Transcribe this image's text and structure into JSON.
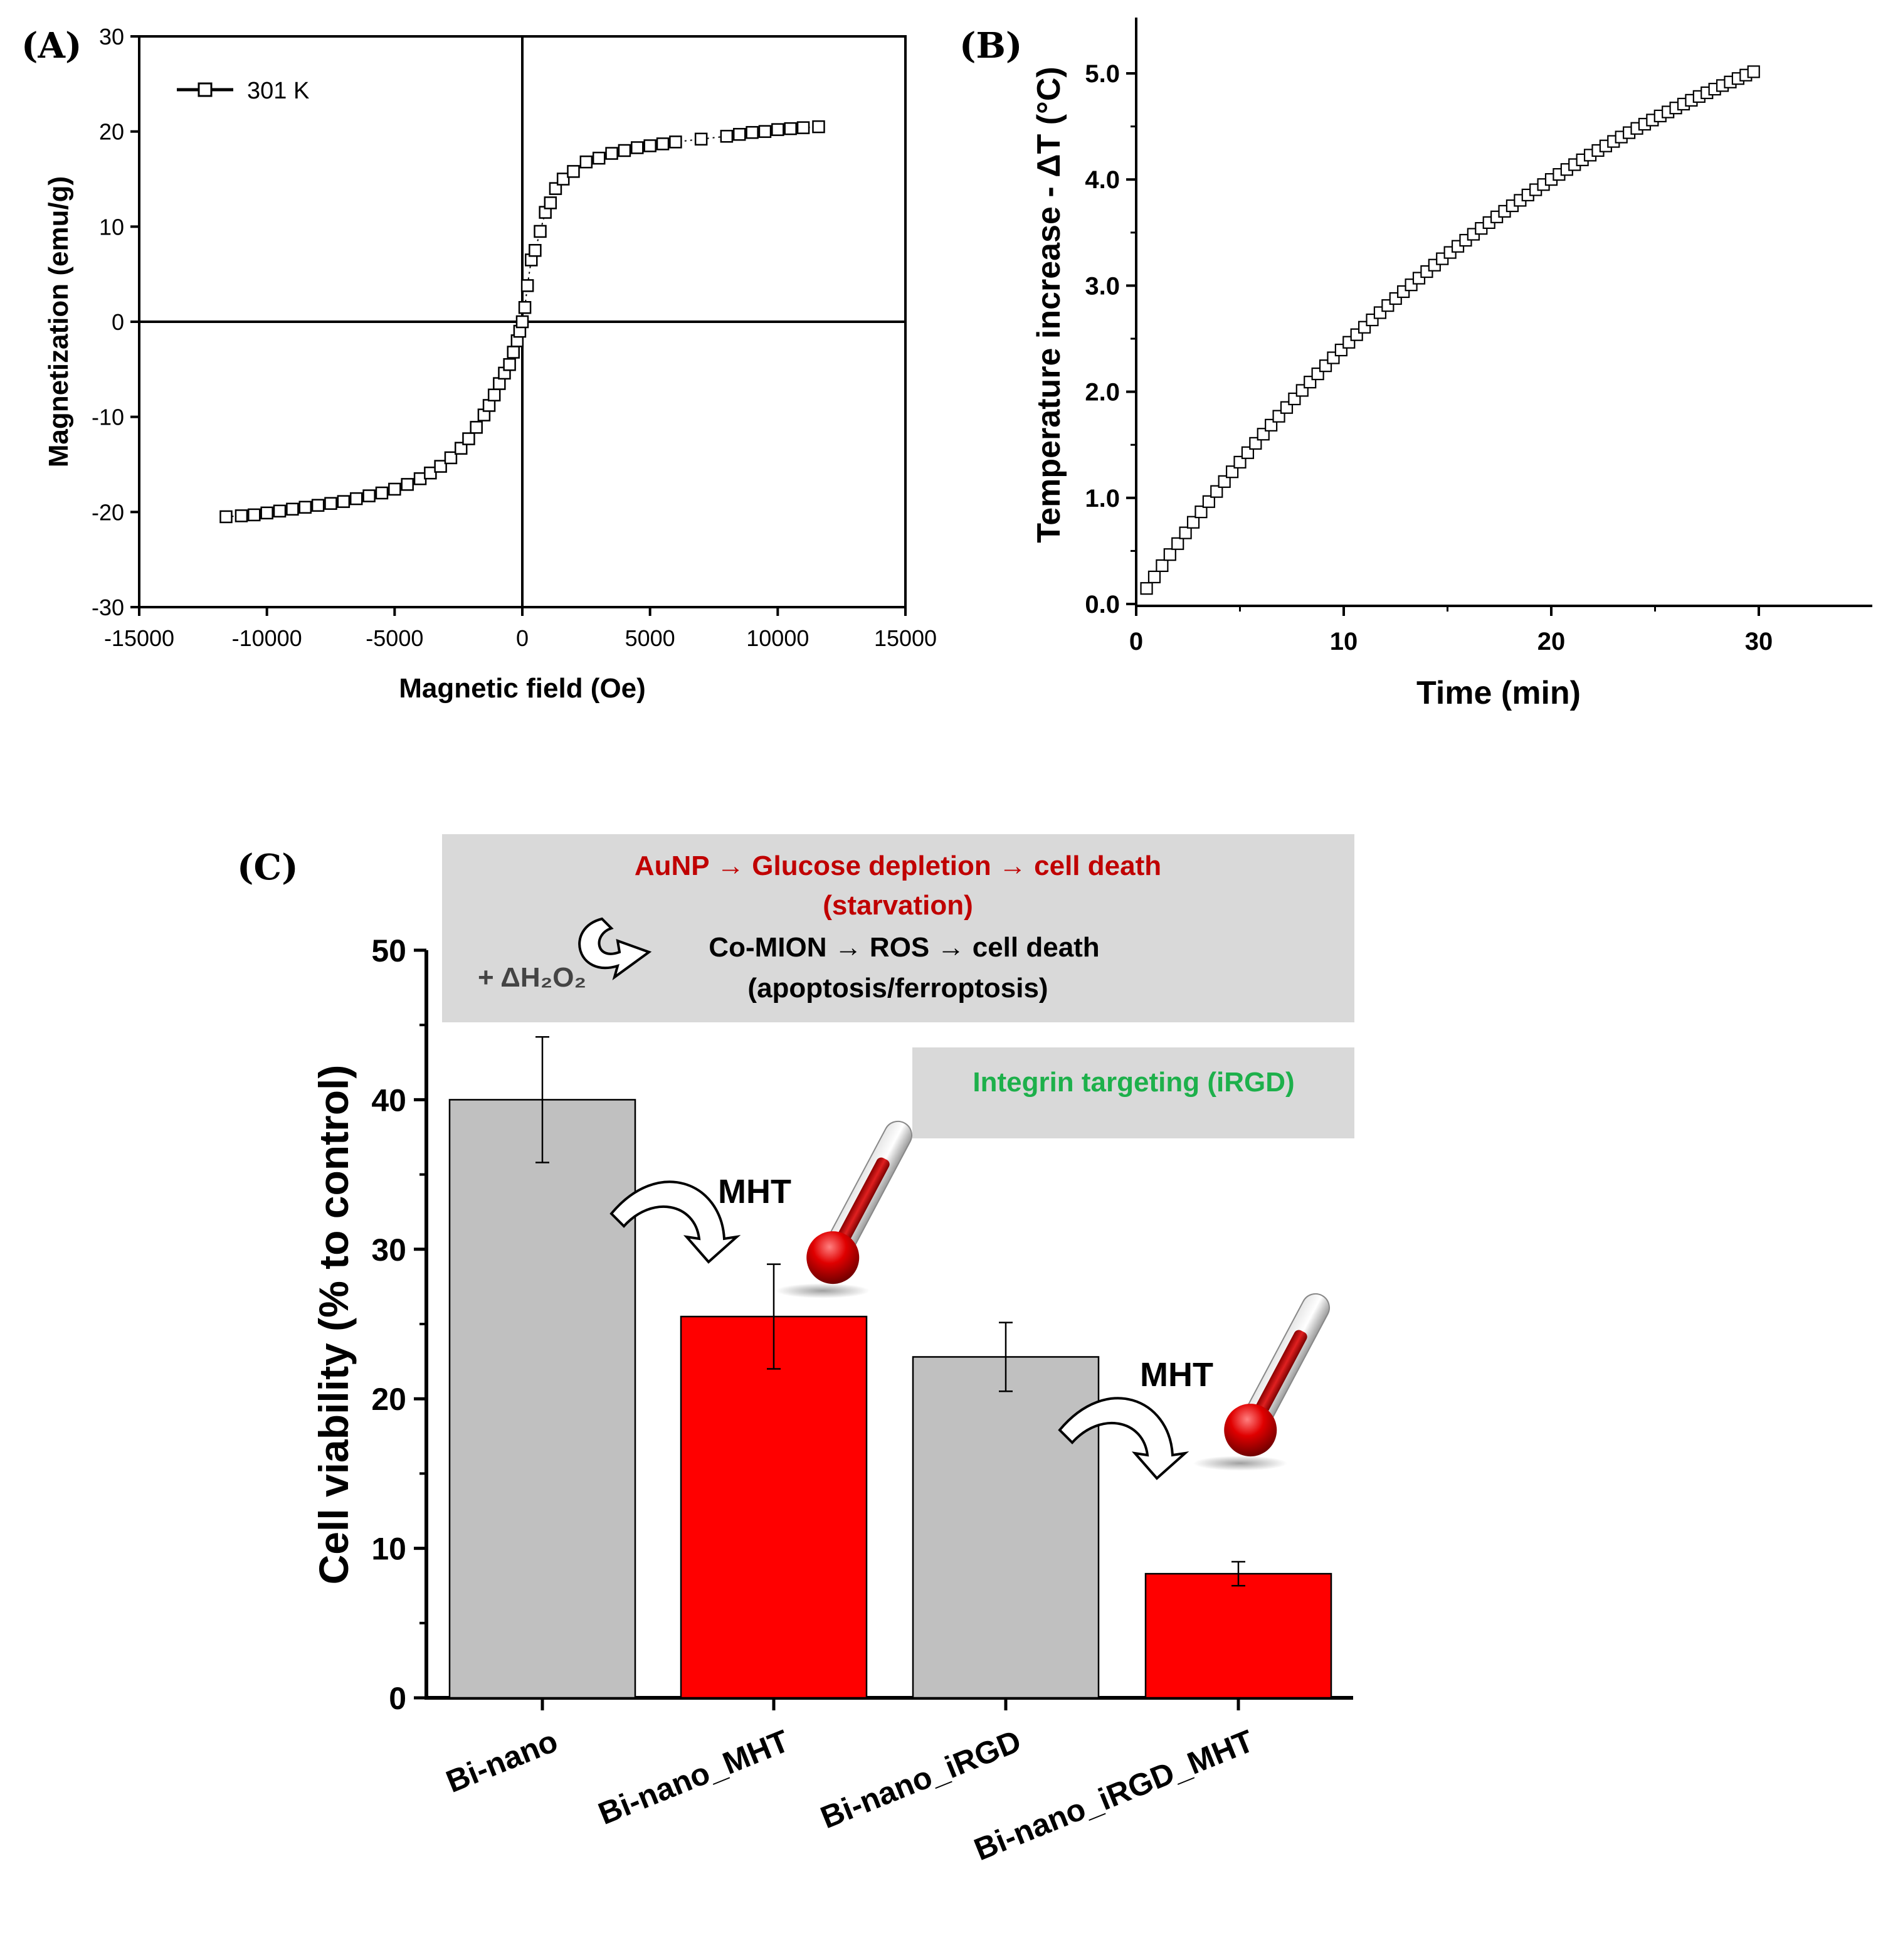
{
  "panels": {
    "a_label": "(A)",
    "b_label": "(B)",
    "c_label": "(C)"
  },
  "chart_data": [
    {
      "panel": "A",
      "type": "scatter",
      "xlabel": "Magnetic field (Oe)",
      "ylabel": "Magnetization (emu/g)",
      "xlim": [
        -15000,
        15000
      ],
      "ylim": [
        -30,
        30
      ],
      "xticks": [
        -15000,
        -10000,
        -5000,
        0,
        5000,
        10000,
        15000
      ],
      "yticks": [
        -30,
        -20,
        -10,
        0,
        10,
        20,
        30
      ],
      "xtick_labels": [
        "-15000",
        "-10000",
        "-5000",
        "0",
        "5000",
        "10000",
        "15000"
      ],
      "ytick_labels": [
        "-30",
        "-20",
        "-10",
        "0",
        "10",
        "20",
        "30"
      ],
      "legend": [
        "301 K"
      ],
      "legend_position": "top-left",
      "series": [
        {
          "name": "301 K",
          "marker": "open-square",
          "x": [
            -11600,
            -11000,
            -10500,
            -10000,
            -9500,
            -9000,
            -8500,
            -8000,
            -7500,
            -7000,
            -6500,
            -6000,
            -5500,
            -5000,
            -4500,
            -4000,
            -3600,
            -3200,
            -2800,
            -2400,
            -2100,
            -1800,
            -1500,
            -1300,
            -1100,
            -900,
            -700,
            -500,
            -350,
            -200,
            -100,
            0,
            100,
            200,
            350,
            500,
            700,
            900,
            1100,
            1300,
            1600,
            2000,
            2500,
            3000,
            3500,
            4000,
            4500,
            5000,
            5500,
            6000,
            7000,
            8000,
            8500,
            9000,
            9500,
            10000,
            10500,
            11000,
            11600
          ],
          "y": [
            -20.5,
            -20.4,
            -20.3,
            -20.1,
            -19.9,
            -19.7,
            -19.5,
            -19.3,
            -19.1,
            -18.9,
            -18.6,
            -18.3,
            -18.0,
            -17.6,
            -17.1,
            -16.5,
            -15.9,
            -15.2,
            -14.3,
            -13.3,
            -12.3,
            -11.1,
            -9.8,
            -8.8,
            -7.7,
            -6.5,
            -5.4,
            -4.5,
            -3.2,
            -2.0,
            -1.0,
            0.0,
            1.5,
            3.8,
            6.5,
            7.5,
            9.5,
            11.5,
            12.5,
            14.0,
            15.0,
            15.8,
            16.8,
            17.2,
            17.7,
            18.0,
            18.3,
            18.5,
            18.7,
            18.9,
            19.2,
            19.5,
            19.7,
            19.9,
            20.0,
            20.2,
            20.3,
            20.4,
            20.5
          ]
        }
      ]
    },
    {
      "panel": "B",
      "type": "scatter",
      "xlabel": "Time (min)",
      "ylabel": "Temperature increase - ΔT (°C)",
      "xlim": [
        0,
        35
      ],
      "ylim": [
        0,
        5.5
      ],
      "xticks": [
        0,
        10,
        20,
        30
      ],
      "yticks": [
        0,
        1,
        2,
        3,
        4,
        5
      ],
      "xtick_labels": [
        "0",
        "10",
        "20",
        "30"
      ],
      "ytick_labels": [
        "0.0",
        "1.0",
        "2.0",
        "3.0",
        "4.0",
        "5.0"
      ],
      "series": [
        {
          "name": "ΔT",
          "marker": "open-square",
          "model": "exponential rise",
          "t_start": 0.5,
          "t_end": 29.75,
          "t_step": 0.375,
          "dT_max": 7.0,
          "tau_min": 23.6
        }
      ]
    },
    {
      "panel": "C",
      "type": "bar",
      "ylabel": "Cell viability (% to control)",
      "ylim": [
        0,
        50
      ],
      "yticks": [
        0,
        10,
        20,
        30,
        40,
        50
      ],
      "ytick_labels": [
        "0",
        "10",
        "20",
        "30",
        "40",
        "50"
      ],
      "categories": [
        "Bi-nano",
        "Bi-nano_MHT",
        "Bi-nano_iRGD",
        "Bi-nano_iRGD_MHT"
      ],
      "values": [
        40.0,
        25.5,
        22.8,
        8.3
      ],
      "errors": [
        4.2,
        3.5,
        2.3,
        0.8
      ],
      "bar_colors": [
        "#c0c0c0",
        "#ff0000",
        "#c0c0c0",
        "#ff0000"
      ]
    }
  ],
  "annotations": {
    "line1": "AuNP → Glucose depletion → cell death",
    "line2": "(starvation)",
    "h2o2": "+ ΔH₂O₂",
    "line3": "Co-MION → ROS → cell death",
    "line4": "(apoptosis/ferroptosis)",
    "integrin": "Integrin targeting (iRGD)",
    "mht1": "MHT",
    "mht2": "MHT",
    "red": "#c00000",
    "green": "#1db04b",
    "box_gray": "#d9d9d9"
  }
}
